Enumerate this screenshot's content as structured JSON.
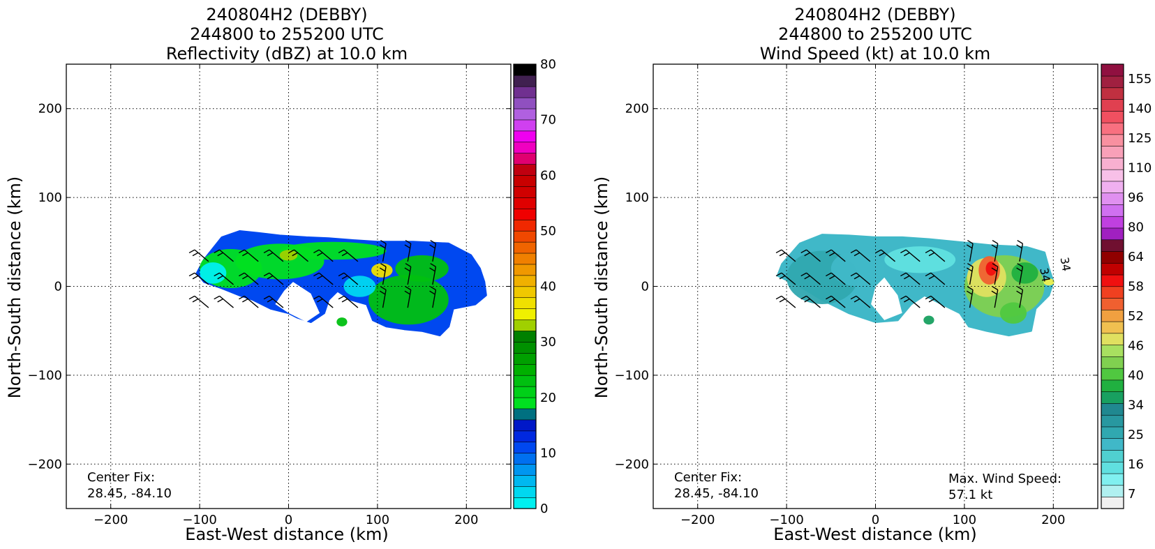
{
  "chart_data": [
    {
      "type": "heatmap",
      "title_lines": [
        "240804H2 (DEBBY)",
        "244800 to 255200 UTC",
        "Reflectivity (dBZ) at 10.0 km"
      ],
      "xlabel": "East-West distance (km)",
      "ylabel": "North-South distance (km)",
      "xlim": [
        -250,
        250
      ],
      "ylim": [
        -250,
        250
      ],
      "xticks": [
        -200,
        -100,
        0,
        100,
        200
      ],
      "yticks": [
        -200,
        -100,
        0,
        100,
        200
      ],
      "grid": true,
      "colorbar": {
        "min": 0,
        "max": 80,
        "tick_values": [
          0,
          10,
          20,
          30,
          40,
          50,
          60,
          70,
          80
        ],
        "tick_labels": [
          "0",
          "10",
          "20",
          "30",
          "40",
          "50",
          "60",
          "70",
          "80"
        ],
        "colors": [
          "#00f0f0",
          "#00d8f0",
          "#00b8f0",
          "#0096f0",
          "#0070f0",
          "#0048f0",
          "#0028e0",
          "#0018c8",
          "#007080",
          "#00e020",
          "#00d018",
          "#00c010",
          "#00b000",
          "#00a000",
          "#009000",
          "#008000",
          "#a0d000",
          "#f0f000",
          "#f0e000",
          "#f0c800",
          "#f0b000",
          "#f09800",
          "#f08000",
          "#f06400",
          "#f04800",
          "#f02800",
          "#f00000",
          "#e00000",
          "#d00000",
          "#c80000",
          "#c00010",
          "#e00070",
          "#f000c0",
          "#f000f0",
          "#d040f0",
          "#b060e0",
          "#9050c0",
          "#703090",
          "#402050",
          "#000000"
        ]
      },
      "annotation_lines": [
        "Center Fix:",
        "28.45, -84.10"
      ],
      "region": {
        "outline": [
          [
            -95,
            30
          ],
          [
            -75,
            55
          ],
          [
            -55,
            62
          ],
          [
            -35,
            60
          ],
          [
            -10,
            57
          ],
          [
            20,
            55
          ],
          [
            45,
            54
          ],
          [
            70,
            52
          ],
          [
            100,
            50
          ],
          [
            140,
            50
          ],
          [
            180,
            48
          ],
          [
            205,
            35
          ],
          [
            215,
            20
          ],
          [
            220,
            5
          ],
          [
            222,
            -10
          ],
          [
            210,
            -20
          ],
          [
            185,
            -25
          ],
          [
            180,
            -45
          ],
          [
            170,
            -55
          ],
          [
            150,
            -50
          ],
          [
            130,
            -48
          ],
          [
            110,
            -45
          ],
          [
            95,
            -38
          ],
          [
            88,
            -20
          ],
          [
            70,
            -15
          ],
          [
            55,
            -5
          ],
          [
            45,
            -15
          ],
          [
            40,
            -30
          ],
          [
            25,
            -40
          ],
          [
            10,
            -35
          ],
          [
            0,
            -30
          ],
          [
            -20,
            -25
          ],
          [
            -40,
            -15
          ],
          [
            -55,
            -10
          ],
          [
            -75,
            -2
          ],
          [
            -95,
            5
          ],
          [
            -103,
            15
          ]
        ],
        "hole": [
          [
            5,
            5
          ],
          [
            25,
            -8
          ],
          [
            35,
            -30
          ],
          [
            20,
            -40
          ],
          [
            0,
            -30
          ],
          [
            -15,
            -20
          ],
          [
            -5,
            -5
          ]
        ],
        "spots": [
          {
            "x": -65,
            "y": 20,
            "rx": 35,
            "ry": 22,
            "color": "#00e020"
          },
          {
            "x": -10,
            "y": 28,
            "rx": 50,
            "ry": 20,
            "color": "#00e020"
          },
          {
            "x": 50,
            "y": 40,
            "rx": 60,
            "ry": 10,
            "color": "#00e020"
          },
          {
            "x": 135,
            "y": -15,
            "rx": 45,
            "ry": 28,
            "color": "#00c010"
          },
          {
            "x": 150,
            "y": 20,
            "rx": 30,
            "ry": 15,
            "color": "#00c010"
          },
          {
            "x": 105,
            "y": 18,
            "rx": 12,
            "ry": 8,
            "color": "#f0e000"
          },
          {
            "x": 0,
            "y": 35,
            "rx": 10,
            "ry": 6,
            "color": "#a0d000"
          },
          {
            "x": -85,
            "y": 15,
            "rx": 15,
            "ry": 12,
            "color": "#00f0f0"
          },
          {
            "x": 80,
            "y": 0,
            "rx": 18,
            "ry": 12,
            "color": "#00d8f0"
          },
          {
            "x": 60,
            "y": -40,
            "rx": 6,
            "ry": 5,
            "color": "#00c010"
          }
        ]
      }
    },
    {
      "type": "heatmap",
      "title_lines": [
        "240804H2 (DEBBY)",
        "244800 to 255200 UTC",
        "Wind Speed (kt) at 10.0 km"
      ],
      "xlabel": "East-West distance (km)",
      "ylabel": "North-South distance (km)",
      "xlim": [
        -250,
        250
      ],
      "ylim": [
        -250,
        250
      ],
      "xticks": [
        -200,
        -100,
        0,
        100,
        200
      ],
      "yticks": [
        -200,
        -100,
        0,
        100,
        200
      ],
      "grid": true,
      "colorbar": {
        "min": 4,
        "max": 160,
        "tick_values": [
          7,
          16,
          25,
          34,
          40,
          46,
          52,
          58,
          64,
          80,
          96,
          110,
          125,
          140,
          155
        ],
        "tick_labels": [
          "7",
          "16",
          "25",
          "34",
          "40",
          "46",
          "52",
          "58",
          "64",
          "80",
          "96",
          "110",
          "125",
          "140",
          "155"
        ],
        "colors": [
          "#f0f0f0",
          "#b0f0f0",
          "#80f0f0",
          "#60e0e0",
          "#50d0d0",
          "#40b8c8",
          "#30a8b0",
          "#2898a0",
          "#208890",
          "#18a060",
          "#20b040",
          "#50c840",
          "#80d050",
          "#a8e060",
          "#e0e060",
          "#f0c050",
          "#f0a040",
          "#f06030",
          "#f04020",
          "#f01010",
          "#c00000",
          "#900000",
          "#701030",
          "#a020c0",
          "#c040e0",
          "#d070f0",
          "#e090f0",
          "#f0b0f0",
          "#f8c0e8",
          "#f8b0d0",
          "#f8a0b8",
          "#f890a0",
          "#f87080",
          "#f05060",
          "#e04050",
          "#c03040",
          "#a02040",
          "#901040"
        ]
      },
      "annotation_lines": [
        "Center Fix:",
        "28.45, -84.10"
      ],
      "max_wind_lines": [
        "Max. Wind Speed:",
        "57.1 kt"
      ],
      "contour_label": "34",
      "region": {
        "outline": [
          [
            -105,
            25
          ],
          [
            -85,
            48
          ],
          [
            -60,
            58
          ],
          [
            -30,
            57
          ],
          [
            0,
            55
          ],
          [
            30,
            55
          ],
          [
            60,
            53
          ],
          [
            90,
            50
          ],
          [
            110,
            48
          ],
          [
            130,
            46
          ],
          [
            170,
            44
          ],
          [
            190,
            38
          ],
          [
            195,
            20
          ],
          [
            200,
            5
          ],
          [
            195,
            -10
          ],
          [
            180,
            -25
          ],
          [
            175,
            -50
          ],
          [
            150,
            -55
          ],
          [
            125,
            -50
          ],
          [
            105,
            -45
          ],
          [
            95,
            -30
          ],
          [
            75,
            -20
          ],
          [
            55,
            -10
          ],
          [
            40,
            -20
          ],
          [
            25,
            -38
          ],
          [
            0,
            -40
          ],
          [
            -30,
            -30
          ],
          [
            -60,
            -15
          ],
          [
            -85,
            0
          ],
          [
            -110,
            12
          ]
        ],
        "hole": [
          [
            10,
            10
          ],
          [
            25,
            -10
          ],
          [
            30,
            -30
          ],
          [
            10,
            -38
          ],
          [
            -5,
            -20
          ],
          [
            0,
            0
          ]
        ],
        "spots": [
          {
            "x": -60,
            "y": 10,
            "rx": 40,
            "ry": 30,
            "color": "#30a8b0"
          },
          {
            "x": -20,
            "y": 20,
            "rx": 30,
            "ry": 20,
            "color": "#40b8c8"
          },
          {
            "x": 50,
            "y": 30,
            "rx": 40,
            "ry": 15,
            "color": "#60e0e0"
          },
          {
            "x": 145,
            "y": 0,
            "rx": 45,
            "ry": 35,
            "color": "#80d050"
          },
          {
            "x": 125,
            "y": 10,
            "rx": 22,
            "ry": 22,
            "color": "#e0e060"
          },
          {
            "x": 128,
            "y": 18,
            "rx": 12,
            "ry": 16,
            "color": "#f06030"
          },
          {
            "x": 130,
            "y": 20,
            "rx": 6,
            "ry": 8,
            "color": "#f01010"
          },
          {
            "x": 168,
            "y": 15,
            "rx": 15,
            "ry": 12,
            "color": "#20b040"
          },
          {
            "x": 155,
            "y": -30,
            "rx": 15,
            "ry": 12,
            "color": "#50c840"
          },
          {
            "x": 60,
            "y": -38,
            "rx": 6,
            "ry": 5,
            "color": "#18a060"
          },
          {
            "x": 195,
            "y": 5,
            "rx": 6,
            "ry": 4,
            "color": "#f0f050"
          }
        ]
      }
    }
  ]
}
